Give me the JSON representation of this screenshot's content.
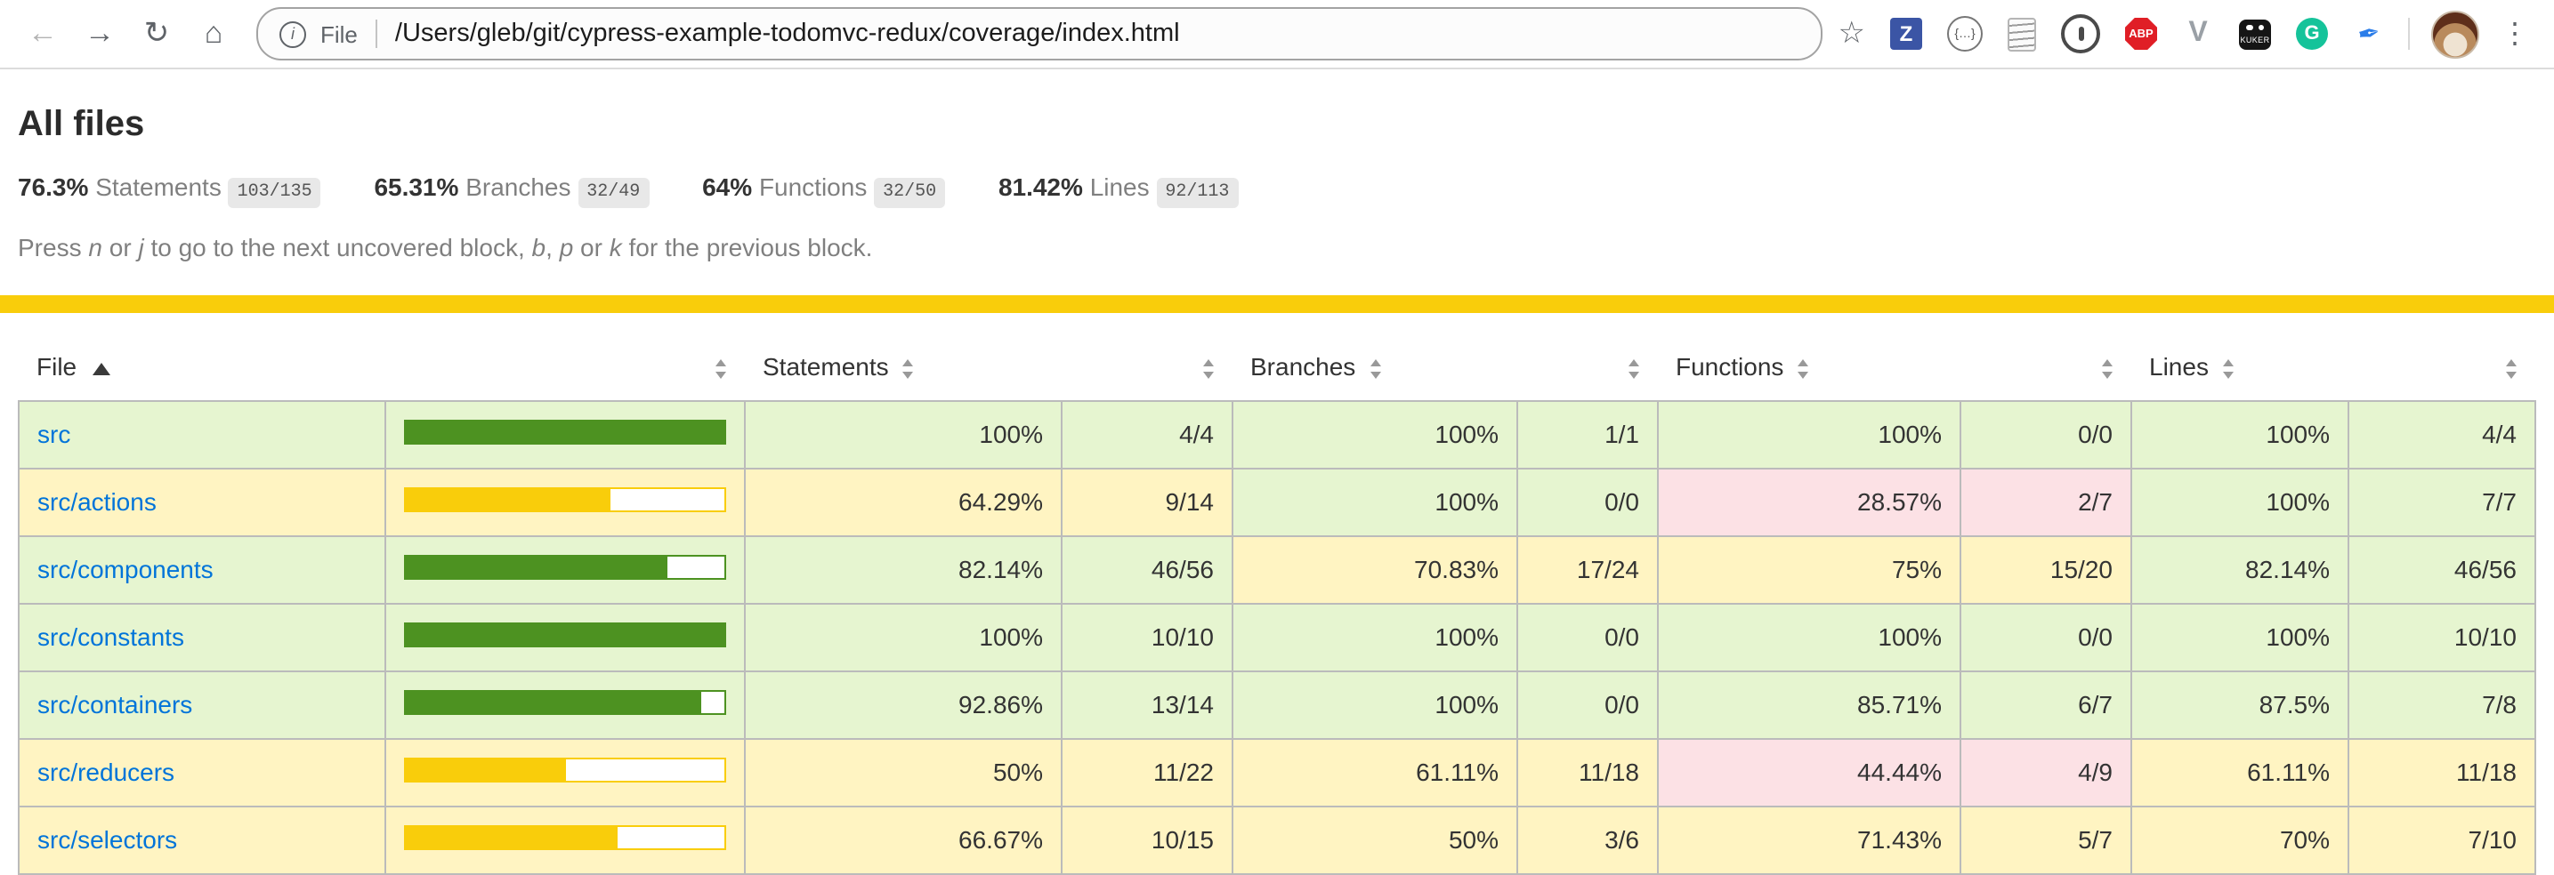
{
  "browser": {
    "back_icon": "←",
    "forward_icon": "→",
    "reload_icon": "↻",
    "home_icon": "⌂",
    "info_icon": "i",
    "scheme_label": "File",
    "url": "/Users/gleb/git/cypress-example-todomvc-redux/coverage/index.html",
    "star_icon": "☆",
    "extensions": {
      "zotero_letter": "Z",
      "braces_glyph": "{…}",
      "adblock_label": "ABP",
      "vue_letter": "V",
      "kuker_label": "KUKER",
      "grammarly_letter": "G",
      "feather_glyph": "✒"
    },
    "menu_icon": "⋮"
  },
  "header": {
    "title": "All files",
    "metrics": [
      {
        "pct": "76.3%",
        "label": "Statements",
        "fraction": "103/135"
      },
      {
        "pct": "65.31%",
        "label": "Branches",
        "fraction": "32/49"
      },
      {
        "pct": "64%",
        "label": "Functions",
        "fraction": "32/50"
      },
      {
        "pct": "81.42%",
        "label": "Lines",
        "fraction": "92/113"
      }
    ],
    "hint": {
      "s0": "Press ",
      "k0": "n",
      "s1": " or ",
      "k1": "j",
      "s2": " to go to the next uncovered block, ",
      "k2": "b",
      "s3": ", ",
      "k3": "p",
      "s4": " or ",
      "k4": "k",
      "s5": " for the previous block."
    }
  },
  "table": {
    "columns": {
      "file": "File",
      "statements": "Statements",
      "branches": "Branches",
      "functions": "Functions",
      "lines": "Lines"
    },
    "rows": [
      {
        "file": "src",
        "chart_pct": 100,
        "statements_pct": "100%",
        "statements_abs": "4/4",
        "branches_pct": "100%",
        "branches_abs": "1/1",
        "functions_pct": "100%",
        "functions_abs": "0/0",
        "lines_pct": "100%",
        "lines_abs": "4/4",
        "statuses": {
          "file": "high",
          "statements": "high",
          "branches": "high",
          "functions": "high",
          "lines": "high"
        }
      },
      {
        "file": "src/actions",
        "chart_pct": 64.29,
        "statements_pct": "64.29%",
        "statements_abs": "9/14",
        "branches_pct": "100%",
        "branches_abs": "0/0",
        "functions_pct": "28.57%",
        "functions_abs": "2/7",
        "lines_pct": "100%",
        "lines_abs": "7/7",
        "statuses": {
          "file": "medium",
          "statements": "medium",
          "branches": "high",
          "functions": "low",
          "lines": "high"
        }
      },
      {
        "file": "src/components",
        "chart_pct": 82.14,
        "statements_pct": "82.14%",
        "statements_abs": "46/56",
        "branches_pct": "70.83%",
        "branches_abs": "17/24",
        "functions_pct": "75%",
        "functions_abs": "15/20",
        "lines_pct": "82.14%",
        "lines_abs": "46/56",
        "statuses": {
          "file": "high",
          "statements": "high",
          "branches": "medium",
          "functions": "medium",
          "lines": "high"
        }
      },
      {
        "file": "src/constants",
        "chart_pct": 100,
        "statements_pct": "100%",
        "statements_abs": "10/10",
        "branches_pct": "100%",
        "branches_abs": "0/0",
        "functions_pct": "100%",
        "functions_abs": "0/0",
        "lines_pct": "100%",
        "lines_abs": "10/10",
        "statuses": {
          "file": "high",
          "statements": "high",
          "branches": "high",
          "functions": "high",
          "lines": "high"
        }
      },
      {
        "file": "src/containers",
        "chart_pct": 92.86,
        "statements_pct": "92.86%",
        "statements_abs": "13/14",
        "branches_pct": "100%",
        "branches_abs": "0/0",
        "functions_pct": "85.71%",
        "functions_abs": "6/7",
        "lines_pct": "87.5%",
        "lines_abs": "7/8",
        "statuses": {
          "file": "high",
          "statements": "high",
          "branches": "high",
          "functions": "high",
          "lines": "high"
        }
      },
      {
        "file": "src/reducers",
        "chart_pct": 50,
        "statements_pct": "50%",
        "statements_abs": "11/22",
        "branches_pct": "61.11%",
        "branches_abs": "11/18",
        "functions_pct": "44.44%",
        "functions_abs": "4/9",
        "lines_pct": "61.11%",
        "lines_abs": "11/18",
        "statuses": {
          "file": "medium",
          "statements": "medium",
          "branches": "medium",
          "functions": "low",
          "lines": "medium"
        }
      },
      {
        "file": "src/selectors",
        "chart_pct": 66.67,
        "statements_pct": "66.67%",
        "statements_abs": "10/15",
        "branches_pct": "50%",
        "branches_abs": "3/6",
        "functions_pct": "71.43%",
        "functions_abs": "5/7",
        "lines_pct": "70%",
        "lines_abs": "7/10",
        "statuses": {
          "file": "medium",
          "statements": "medium",
          "branches": "medium",
          "functions": "medium",
          "lines": "medium"
        }
      }
    ]
  },
  "colors": {
    "link": "#0074D9",
    "high_bg": "#E6F5D0",
    "medium_bg": "#FFF4C2",
    "low_bg": "#FCE1E5",
    "fill_high": "#4D9221",
    "fill_medium": "#F9CD0B",
    "status_line": "#F9CD0B",
    "fraction_bg": "#E8E8E8"
  }
}
